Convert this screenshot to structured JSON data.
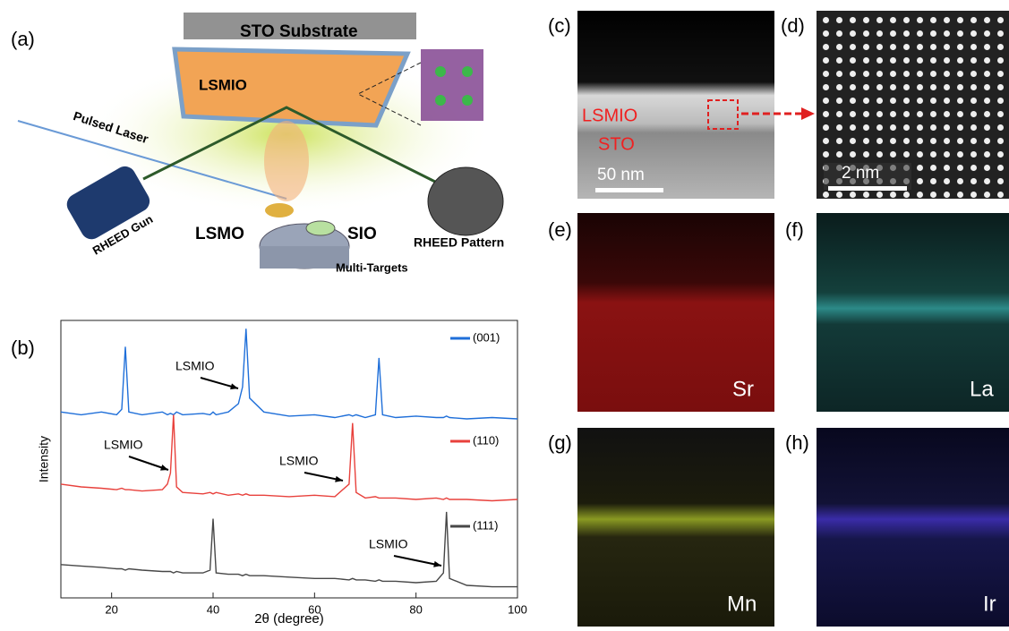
{
  "schematic": {
    "label": "(a)",
    "substrate": "STO Substrate",
    "film": "LSMIO",
    "laser": "Pulsed Laser",
    "gun": "RHEED Gun",
    "target1": "LSMO",
    "target2": "SIO",
    "targets": "Multi-Targets",
    "pattern": "RHEED Pattern"
  },
  "chart_data": {
    "type": "line",
    "label": "(b)",
    "xlabel": "2θ (degree)",
    "ylabel": "Intensity",
    "x": [
      10,
      14,
      18,
      21,
      22,
      22.7,
      23.4,
      26,
      30,
      31,
      31.6,
      32.2,
      32.8,
      34,
      38,
      39.4,
      40,
      40.6,
      43,
      45,
      45.8,
      46.5,
      47.2,
      50,
      55,
      60,
      64,
      66.8,
      67.5,
      68.2,
      70,
      72,
      72.7,
      73.4,
      76,
      80,
      84,
      85.4,
      86,
      86.6,
      90,
      95,
      100
    ],
    "series": [
      {
        "name": "(001)",
        "color": "#1f6fd9",
        "values": [
          6.7,
          6.6,
          6.7,
          6.6,
          6.8,
          9.05,
          6.7,
          6.6,
          6.7,
          6.6,
          6.65,
          6.6,
          6.7,
          6.6,
          6.65,
          6.6,
          6.7,
          6.6,
          6.7,
          7.0,
          7.6,
          9.7,
          7.2,
          6.7,
          6.55,
          6.6,
          6.5,
          6.6,
          6.55,
          6.6,
          6.5,
          6.6,
          8.65,
          6.6,
          6.5,
          6.55,
          6.5,
          6.5,
          6.55,
          6.5,
          6.45,
          6.5,
          6.45
        ]
      },
      {
        "name": "(110)",
        "color": "#e8413c",
        "values": [
          4.1,
          4.0,
          3.95,
          3.9,
          3.95,
          3.9,
          3.9,
          3.85,
          3.9,
          4.1,
          4.5,
          6.6,
          4.0,
          3.8,
          3.75,
          3.8,
          3.75,
          3.8,
          3.7,
          3.75,
          3.7,
          3.75,
          3.7,
          3.7,
          3.65,
          3.7,
          3.65,
          4.1,
          6.3,
          3.8,
          3.6,
          3.65,
          3.6,
          3.6,
          3.6,
          3.55,
          3.6,
          3.55,
          3.6,
          3.55,
          3.55,
          3.5,
          3.55
        ]
      },
      {
        "name": "(111)",
        "color": "#474747",
        "values": [
          1.2,
          1.15,
          1.1,
          1.05,
          1.05,
          1.0,
          1.05,
          1.0,
          0.95,
          0.95,
          0.95,
          0.9,
          0.95,
          0.9,
          0.9,
          1.0,
          2.85,
          0.9,
          0.85,
          0.85,
          0.8,
          0.85,
          0.8,
          0.8,
          0.75,
          0.7,
          0.7,
          0.65,
          0.7,
          0.65,
          0.65,
          0.6,
          0.65,
          0.6,
          0.6,
          0.55,
          0.6,
          0.9,
          3.1,
          0.7,
          0.45,
          0.4,
          0.4
        ]
      }
    ],
    "annotations": [
      "LSMIO",
      "LSMIO",
      "LSMIO",
      "LSMIO"
    ],
    "xlim": [
      10,
      100
    ],
    "xticks": [
      20,
      40,
      60,
      80,
      100
    ],
    "ylim": [
      0,
      10
    ]
  },
  "tem": {
    "label": "(c)",
    "layer1": "LSMIO",
    "layer2": "STO",
    "scale": "50 nm"
  },
  "hrtem": {
    "label": "(d)",
    "scale": "2 nm"
  },
  "maps": [
    {
      "label": "(e)",
      "element": "Sr"
    },
    {
      "label": "(f)",
      "element": "La"
    },
    {
      "label": "(g)",
      "element": "Mn"
    },
    {
      "label": "(h)",
      "element": "Ir"
    }
  ]
}
